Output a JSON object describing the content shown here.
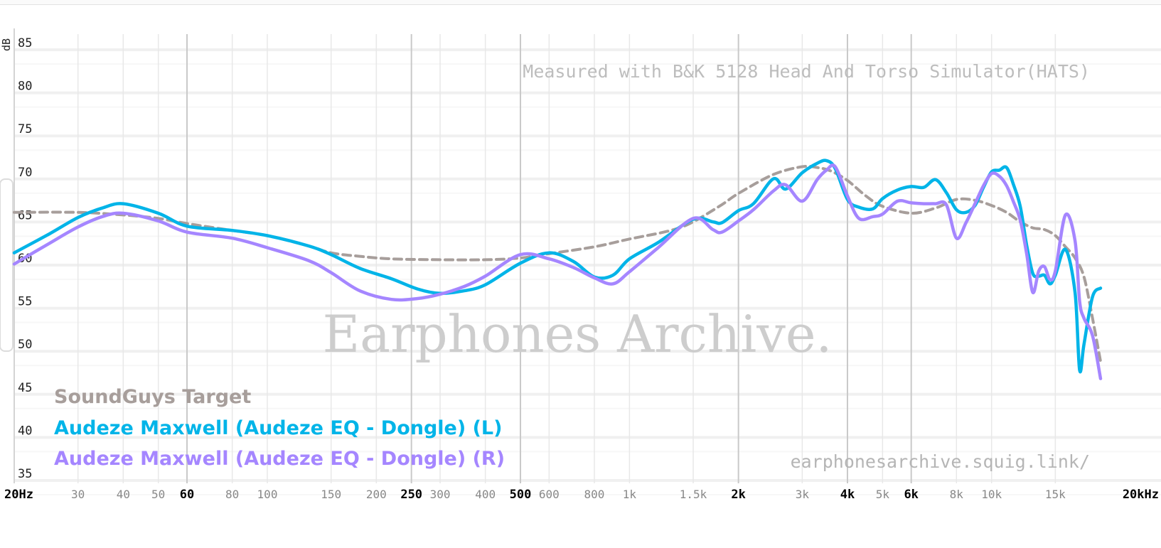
{
  "chart_data": {
    "type": "line",
    "ylabel": "dB",
    "ylim": [
      35,
      85
    ],
    "xlim": [
      20,
      20000
    ],
    "x_scale": "log",
    "y_ticks": [
      "85",
      "80",
      "75",
      "70",
      "65",
      "60",
      "55",
      "50",
      "45",
      "40",
      "35"
    ],
    "y_tick_values": [
      85,
      80,
      75,
      70,
      65,
      60,
      55,
      50,
      45,
      40,
      35
    ],
    "x_ticks": [
      {
        "value": 20,
        "label": "20Hz",
        "major": true
      },
      {
        "value": 30,
        "label": "30",
        "major": false
      },
      {
        "value": 40,
        "label": "40",
        "major": false
      },
      {
        "value": 50,
        "label": "50",
        "major": false
      },
      {
        "value": 60,
        "label": "60",
        "major": true
      },
      {
        "value": 80,
        "label": "80",
        "major": false
      },
      {
        "value": 100,
        "label": "100",
        "major": false
      },
      {
        "value": 150,
        "label": "150",
        "major": false
      },
      {
        "value": 200,
        "label": "200",
        "major": false
      },
      {
        "value": 250,
        "label": "250",
        "major": true
      },
      {
        "value": 300,
        "label": "300",
        "major": false
      },
      {
        "value": 400,
        "label": "400",
        "major": false
      },
      {
        "value": 500,
        "label": "500",
        "major": true
      },
      {
        "value": 600,
        "label": "600",
        "major": false
      },
      {
        "value": 800,
        "label": "800",
        "major": false
      },
      {
        "value": 1000,
        "label": "1k",
        "major": false
      },
      {
        "value": 1500,
        "label": "1.5k",
        "major": false
      },
      {
        "value": 2000,
        "label": "2k",
        "major": true
      },
      {
        "value": 3000,
        "label": "3k",
        "major": false
      },
      {
        "value": 4000,
        "label": "4k",
        "major": true
      },
      {
        "value": 5000,
        "label": "5k",
        "major": false
      },
      {
        "value": 6000,
        "label": "6k",
        "major": true
      },
      {
        "value": 8000,
        "label": "8k",
        "major": false
      },
      {
        "value": 10000,
        "label": "10k",
        "major": false
      },
      {
        "value": 15000,
        "label": "15k",
        "major": false
      },
      {
        "value": 20000,
        "label": "20kHz",
        "major": true
      }
    ],
    "annotations": {
      "measured_with": "Measured with B&K 5128 Head And Torso Simulator(HATS)",
      "watermark": "Earphones Archive.",
      "site": "earphonesarchive.squig.link/"
    },
    "legend_position": "bottom-left",
    "series": [
      {
        "name": "SoundGuys Target",
        "color": "#a79e9b",
        "dashed": true,
        "x": [
          20,
          30,
          40,
          50,
          60,
          80,
          100,
          130,
          150,
          180,
          220,
          300,
          400,
          500,
          600,
          800,
          1000,
          1300,
          1500,
          1800,
          2000,
          2500,
          3000,
          3300,
          3600,
          4000,
          4500,
          5000,
          6000,
          7000,
          8000,
          9000,
          10000,
          11000,
          12000,
          13000,
          14000,
          15000,
          16000,
          17000,
          18000,
          19000,
          20000
        ],
        "values": [
          65.3,
          65.3,
          65.0,
          64.6,
          64.0,
          63.2,
          62.6,
          61.4,
          60.6,
          60.2,
          59.9,
          59.8,
          59.8,
          60.0,
          60.5,
          61.3,
          62.2,
          63.2,
          64.2,
          66.2,
          67.5,
          69.7,
          70.6,
          70.5,
          70.1,
          69.0,
          67.2,
          66.0,
          65.2,
          65.8,
          66.8,
          66.7,
          66.1,
          65.3,
          64.2,
          63.5,
          63.3,
          62.6,
          61.3,
          60.0,
          57.8,
          53.0,
          48.0
        ]
      },
      {
        "name": "Audeze Maxwell (Audeze EQ - Dongle) (L)",
        "color": "#00b4e8",
        "dashed": false,
        "x": [
          20,
          25,
          30,
          35,
          40,
          50,
          60,
          80,
          100,
          130,
          150,
          180,
          220,
          260,
          300,
          350,
          400,
          500,
          600,
          700,
          800,
          900,
          1000,
          1200,
          1500,
          1700,
          1800,
          2000,
          2200,
          2500,
          2700,
          3000,
          3300,
          3500,
          3700,
          4000,
          4300,
          4700,
          5000,
          5500,
          6000,
          6500,
          7000,
          7500,
          8000,
          8500,
          9000,
          9500,
          10000,
          10500,
          11000,
          11500,
          12000,
          12500,
          13000,
          13500,
          14000,
          14500,
          15000,
          16000,
          17000,
          17500,
          18000,
          19000,
          20000
        ],
        "values": [
          60.6,
          62.8,
          64.7,
          65.8,
          66.3,
          65.2,
          63.7,
          63.2,
          62.6,
          61.4,
          60.4,
          58.8,
          57.6,
          56.4,
          55.9,
          56.2,
          56.9,
          59.4,
          60.6,
          59.6,
          57.8,
          58.0,
          59.9,
          61.8,
          64.5,
          64.2,
          64.1,
          65.5,
          66.3,
          69.2,
          68.0,
          69.9,
          71.0,
          71.3,
          70.4,
          66.8,
          65.9,
          65.7,
          66.9,
          67.9,
          68.3,
          68.2,
          69.1,
          67.6,
          65.6,
          65.3,
          66.1,
          68.2,
          70.0,
          70.2,
          70.5,
          68.5,
          66.0,
          61.5,
          58.2,
          57.9,
          58.0,
          57.0,
          58.0,
          61.0,
          56.0,
          47.0,
          50.0,
          55.5,
          56.5
        ]
      },
      {
        "name": "Audeze Maxwell (Audeze EQ - Dongle) (R)",
        "color": "#a586ff",
        "dashed": false,
        "x": [
          20,
          25,
          30,
          35,
          40,
          50,
          60,
          80,
          100,
          130,
          150,
          180,
          220,
          260,
          300,
          350,
          400,
          500,
          600,
          700,
          800,
          900,
          1000,
          1200,
          1500,
          1700,
          1800,
          2000,
          2200,
          2500,
          2700,
          3000,
          3300,
          3500,
          3700,
          4000,
          4300,
          4700,
          5000,
          5500,
          6000,
          6500,
          7000,
          7500,
          8000,
          8500,
          9000,
          9500,
          10000,
          10500,
          11000,
          11500,
          12000,
          12500,
          13000,
          13500,
          14000,
          14500,
          15000,
          16000,
          17000,
          17500,
          18000,
          19000,
          20000
        ],
        "values": [
          59.3,
          61.7,
          63.6,
          64.8,
          65.2,
          64.3,
          63.0,
          62.3,
          61.2,
          59.7,
          58.3,
          56.2,
          55.2,
          55.3,
          55.8,
          56.7,
          57.9,
          60.4,
          59.9,
          58.9,
          57.7,
          57.0,
          58.4,
          61.2,
          64.6,
          63.3,
          63.0,
          64.3,
          65.6,
          67.8,
          68.5,
          66.6,
          69.1,
          70.2,
          70.6,
          67.2,
          64.6,
          64.8,
          65.1,
          66.6,
          66.4,
          66.3,
          66.3,
          66.2,
          62.3,
          64.1,
          66.3,
          68.4,
          69.8,
          69.5,
          68.4,
          66.5,
          64.4,
          60.5,
          56.0,
          58.5,
          59.0,
          57.5,
          58.5,
          65.0,
          62.0,
          55.0,
          53.0,
          51.0,
          46.0
        ]
      }
    ]
  }
}
